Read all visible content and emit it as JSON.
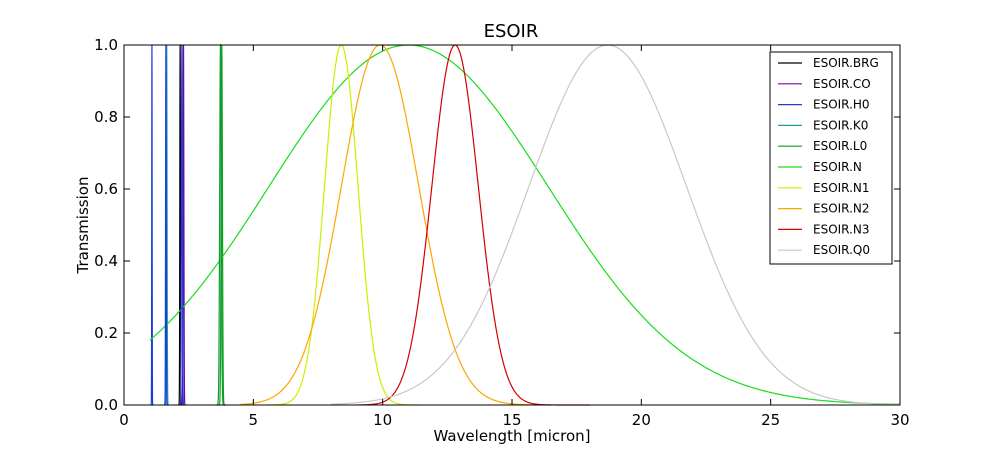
{
  "chart_data": {
    "type": "line",
    "title": "ESOIR",
    "xlabel": "Wavelength [micron]",
    "ylabel": "Transmission",
    "xlim": [
      0,
      30
    ],
    "ylim": [
      0,
      1
    ],
    "xticks": [
      0,
      5,
      10,
      15,
      20,
      25,
      30
    ],
    "xtick_labels": [
      "0",
      "5",
      "10",
      "15",
      "20",
      "25",
      "30"
    ],
    "yticks": [
      0,
      0.2,
      0.4,
      0.6,
      0.8,
      1.0
    ],
    "ytick_labels": [
      "0.0",
      "0.2",
      "0.4",
      "0.6",
      "0.8",
      "1.0"
    ],
    "grid": false,
    "legend_position": "top-right",
    "series": [
      {
        "name": "ESOIR.BRG",
        "color": "#000000",
        "shape": "gaussian",
        "center": 2.17,
        "sigma": 0.012,
        "range": [
          2.1,
          2.24
        ]
      },
      {
        "name": "ESOIR.CO",
        "color": "#7a00a8",
        "shape": "gaussian",
        "center": 2.3,
        "sigma": 0.015,
        "range": [
          2.22,
          2.38
        ]
      },
      {
        "name": "ESOIR.H0",
        "color": "#1a3fd6",
        "shape": "gaussian",
        "center": 1.08,
        "sigma": 0.008,
        "range": [
          1.03,
          1.13
        ]
      },
      {
        "name": "ESOIR.K0",
        "color": "#1aa0a8",
        "shape": "gaussian",
        "center": 1.65,
        "sigma": 0.015,
        "range": [
          1.57,
          1.73
        ]
      },
      {
        "name": "ESOIR.L0",
        "color": "#0f9e28",
        "shape": "gaussian",
        "center": 3.78,
        "sigma": 0.025,
        "range": [
          3.62,
          3.94
        ]
      },
      {
        "name": "ESOIR.N",
        "color": "#1adc1a",
        "shape": "gaussian",
        "center": 11.0,
        "sigma": 5.4,
        "range": [
          1.0,
          30.0
        ]
      },
      {
        "name": "ESOIR.N1",
        "color": "#ccee00",
        "shape": "gaussian",
        "center": 8.4,
        "sigma": 0.65,
        "range": [
          5.5,
          11.5
        ]
      },
      {
        "name": "ESOIR.N2",
        "color": "#ffa500",
        "shape": "gaussian",
        "center": 9.9,
        "sigma": 1.5,
        "range": [
          4.5,
          16.5
        ]
      },
      {
        "name": "ESOIR.N3",
        "color": "#d40000",
        "shape": "gaussian",
        "center": 12.8,
        "sigma": 0.9,
        "range": [
          9.0,
          18.0
        ]
      },
      {
        "name": "ESOIR.Q0",
        "color": "#c8c8c8",
        "shape": "gaussian",
        "center": 18.7,
        "sigma": 3.05,
        "range": [
          8.0,
          30.0
        ]
      }
    ],
    "extra_markers": [
      {
        "color": "#1a3fd6",
        "center": 1.62,
        "sigma": 0.012,
        "range": [
          1.55,
          1.69
        ]
      },
      {
        "color": "#1a3fd6",
        "center": 2.24,
        "sigma": 0.018,
        "range": [
          2.16,
          2.32
        ]
      },
      {
        "color": "#0f9e28",
        "center": 3.73,
        "sigma": 0.03,
        "range": [
          3.55,
          3.92
        ]
      }
    ]
  }
}
